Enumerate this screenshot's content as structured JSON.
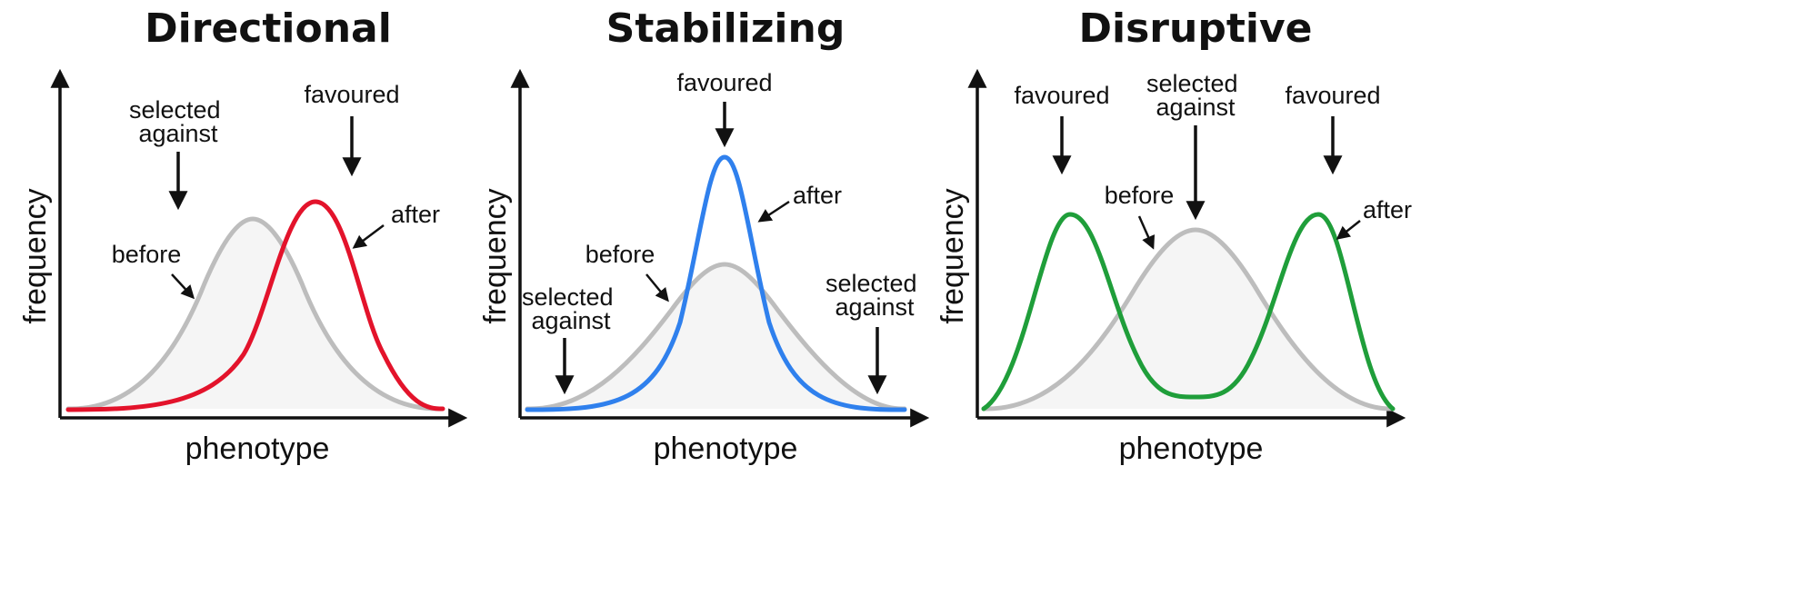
{
  "panels": [
    {
      "title": "Directional",
      "xlabel": "phenotype",
      "ylabel": "frequency",
      "labels": {
        "selected_against": [
          "selected",
          "against"
        ],
        "favoured": "favoured",
        "before": "before",
        "after": "after"
      },
      "curve_color": "#e3132b"
    },
    {
      "title": "Stabilizing",
      "xlabel": "phenotype",
      "ylabel": "frequency",
      "labels": {
        "favoured": "favoured",
        "after": "after",
        "before": "before",
        "selected_against_left": [
          "selected",
          "against"
        ],
        "selected_against_right": [
          "selected",
          "against"
        ]
      },
      "curve_color": "#2f80ed"
    },
    {
      "title": "Disruptive",
      "xlabel": "phenotype",
      "ylabel": "frequency",
      "labels": {
        "favoured_left": "favoured",
        "selected_against": [
          "selected",
          "against"
        ],
        "favoured_right": "favoured",
        "before": "before",
        "after": "after"
      },
      "curve_color": "#1f9e3a"
    }
  ],
  "colors": {
    "before_curve": "#bdbdbd",
    "axis": "#111111",
    "fill": "#f5f5f5"
  }
}
